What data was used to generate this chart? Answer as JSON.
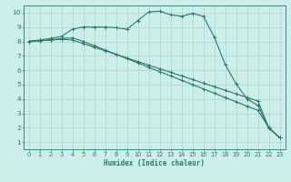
{
  "xlabel": "Humidex (Indice chaleur)",
  "line_color": "#2a7a6a",
  "bg_color": "#cceee8",
  "grid_color": "#aad4cc",
  "spine_color": "#2a7a6a",
  "xlim": [
    -0.5,
    23.5
  ],
  "ylim": [
    0.5,
    10.5
  ],
  "xticks": [
    0,
    1,
    2,
    3,
    4,
    5,
    6,
    7,
    8,
    9,
    10,
    11,
    12,
    13,
    14,
    15,
    16,
    17,
    18,
    19,
    20,
    21,
    22,
    23
  ],
  "yticks": [
    1,
    2,
    3,
    4,
    5,
    6,
    7,
    8,
    9,
    10
  ],
  "line1_x": [
    0,
    1,
    2,
    3,
    4,
    5,
    6,
    7,
    8,
    9,
    10,
    11,
    12,
    13,
    14,
    15,
    16,
    17,
    18,
    19,
    20,
    21,
    22,
    23
  ],
  "line1_y": [
    8.0,
    8.1,
    8.2,
    8.35,
    8.85,
    9.0,
    9.0,
    9.0,
    8.95,
    8.85,
    9.45,
    10.05,
    10.1,
    9.85,
    9.75,
    9.95,
    9.75,
    8.3,
    6.4,
    5.05,
    4.0,
    3.55,
    1.95,
    1.3
  ],
  "line2_x": [
    0,
    1,
    2,
    3,
    4,
    5,
    6,
    7,
    8,
    9,
    10,
    11,
    12,
    13,
    14,
    15,
    16,
    17,
    18,
    19,
    20,
    21,
    22,
    23
  ],
  "line2_y": [
    8.0,
    8.05,
    8.1,
    8.15,
    8.1,
    7.85,
    7.6,
    7.35,
    7.1,
    6.85,
    6.6,
    6.35,
    6.1,
    5.85,
    5.6,
    5.35,
    5.1,
    4.85,
    4.6,
    4.35,
    4.1,
    3.85,
    2.0,
    1.3
  ],
  "line3_x": [
    0,
    1,
    2,
    3,
    4,
    5,
    6,
    7,
    8,
    9,
    10,
    11,
    12,
    13,
    14,
    15,
    16,
    17,
    18,
    19,
    20,
    21,
    22,
    23
  ],
  "line3_y": [
    8.0,
    8.05,
    8.1,
    8.2,
    8.25,
    8.0,
    7.7,
    7.4,
    7.1,
    6.8,
    6.5,
    6.2,
    5.9,
    5.6,
    5.3,
    5.0,
    4.7,
    4.4,
    4.1,
    3.8,
    3.5,
    3.2,
    2.0,
    1.3
  ],
  "xlabel_fontsize": 5.5,
  "tick_fontsize": 4.8,
  "linewidth": 0.8,
  "markersize": 2.5
}
